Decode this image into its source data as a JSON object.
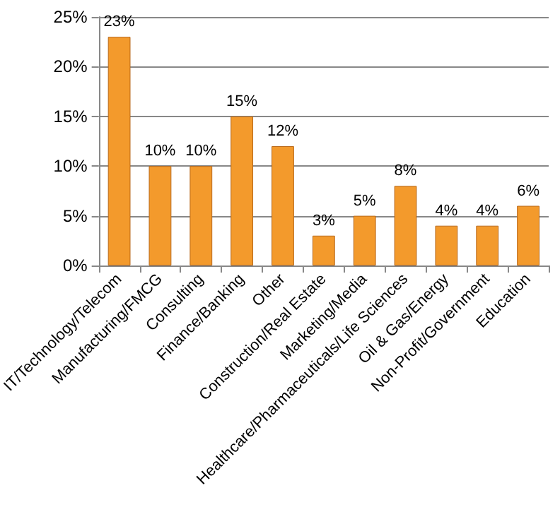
{
  "chart_data": {
    "type": "bar",
    "categories": [
      "IT/Technology/Telecom",
      "Manufacturing/FMCG",
      "Consulting",
      "Finance/Banking",
      "Other",
      "Construction/Real Estate",
      "Marketing/Media",
      "Healthcare/Pharmaceuticals/Life Sciences",
      "Oil & Gas/Energy",
      "Non-Profit/Government",
      "Education"
    ],
    "values": [
      23,
      10,
      10,
      15,
      12,
      3,
      5,
      8,
      4,
      4,
      6
    ],
    "color": "#f39a2c",
    "value_labels": [
      "23%",
      "10%",
      "10%",
      "15%",
      "12%",
      "3%",
      "5%",
      "8%",
      "4%",
      "4%",
      "6%"
    ],
    "ylim": [
      0,
      25
    ],
    "yticks": [
      {
        "value": 0,
        "label": "0%"
      },
      {
        "value": 5,
        "label": "5%"
      },
      {
        "value": 10,
        "label": "10%"
      },
      {
        "value": 15,
        "label": "15%"
      },
      {
        "value": 20,
        "label": "20%"
      },
      {
        "value": 25,
        "label": "25%"
      }
    ],
    "grid": "y"
  }
}
